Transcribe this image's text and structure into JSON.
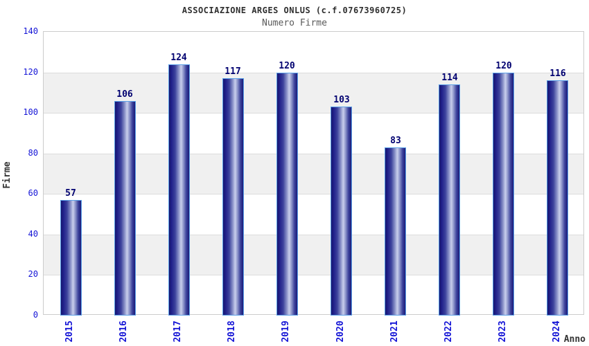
{
  "chart_data": {
    "type": "bar",
    "title": "ASSOCIAZIONE ARGES ONLUS (c.f.07673960725)",
    "subtitle": "Numero Firme",
    "xlabel": "Anno",
    "ylabel": "Firme",
    "categories": [
      "2015",
      "2016",
      "2017",
      "2018",
      "2019",
      "2020",
      "2021",
      "2022",
      "2023",
      "2024"
    ],
    "values": [
      57,
      106,
      124,
      117,
      120,
      103,
      83,
      114,
      120,
      116
    ],
    "ylim": [
      0,
      140
    ],
    "ytick_step": 20,
    "yticks": [
      0,
      20,
      40,
      60,
      80,
      100,
      120,
      140
    ],
    "grid": true,
    "band_fill": "alternating horizontal gray bands",
    "legend": "none"
  },
  "colors": {
    "tick_label_blue": "#1414d6",
    "value_label_navy": "#000070",
    "title_color": "#2e2e2e",
    "subtitle_color": "#5a5a5a",
    "axis_title_color": "#333333",
    "band_gray": "#f0f0f0",
    "gridline_gray": "#dcdcdc",
    "plot_border_gray": "#cccccc",
    "bar_border_lightblue": "#5aa0e8",
    "bar_gradient_dark": "#1b1b78",
    "bar_gradient_light": "#c9cfec"
  }
}
